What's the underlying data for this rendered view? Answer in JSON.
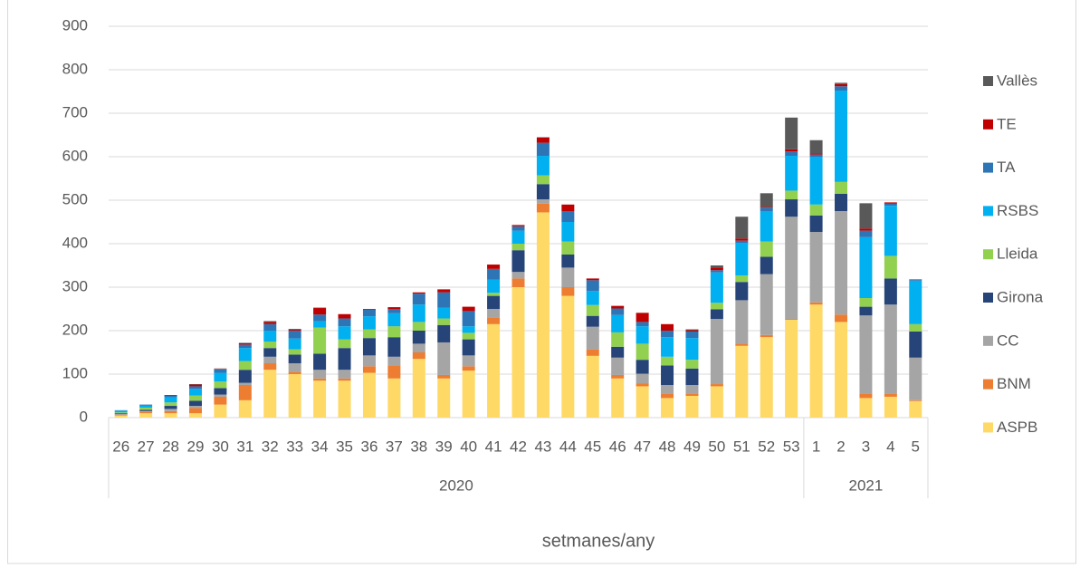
{
  "chart_data": {
    "type": "stacked_bar",
    "x_label": "setmanes/any",
    "groups": [
      {
        "name": "2020",
        "categories": [
          "26",
          "27",
          "28",
          "29",
          "30",
          "31",
          "32",
          "33",
          "34",
          "35",
          "36",
          "37",
          "38",
          "39",
          "40",
          "41",
          "42",
          "43",
          "44",
          "45",
          "46",
          "47",
          "48",
          "49",
          "50",
          "51",
          "52",
          "53"
        ]
      },
      {
        "name": "2021",
        "categories": [
          "1",
          "2",
          "3",
          "4",
          "5"
        ]
      }
    ],
    "series": [
      {
        "name": "ASPB",
        "color": "#ffd966",
        "values": [
          5,
          10,
          10,
          10,
          30,
          40,
          110,
          100,
          85,
          85,
          103,
          90,
          135,
          90,
          108,
          215,
          300,
          472,
          280,
          142,
          90,
          72,
          45,
          50,
          72,
          165,
          185,
          225,
          260,
          220,
          45,
          48,
          38
        ]
      },
      {
        "name": "BNM",
        "color": "#ed7d31",
        "values": [
          2,
          3,
          5,
          12,
          18,
          35,
          15,
          5,
          5,
          5,
          15,
          30,
          15,
          8,
          10,
          15,
          20,
          20,
          20,
          15,
          8,
          7,
          10,
          5,
          5,
          5,
          5,
          2,
          5,
          17,
          10,
          7,
          2
        ]
      },
      {
        "name": "CC",
        "color": "#a5a5a5",
        "values": [
          1,
          2,
          5,
          5,
          5,
          5,
          15,
          20,
          20,
          20,
          25,
          20,
          20,
          75,
          25,
          20,
          15,
          10,
          45,
          52,
          40,
          22,
          20,
          20,
          150,
          100,
          140,
          235,
          162,
          238,
          180,
          205,
          98
        ]
      },
      {
        "name": "Girona",
        "color": "#264478",
        "values": [
          2,
          3,
          7,
          12,
          15,
          30,
          20,
          20,
          37,
          50,
          40,
          45,
          30,
          40,
          37,
          30,
          50,
          35,
          30,
          25,
          25,
          32,
          45,
          38,
          22,
          42,
          40,
          40,
          38,
          40,
          20,
          60,
          60
        ]
      },
      {
        "name": "Lleida",
        "color": "#92d050",
        "values": [
          2,
          5,
          8,
          12,
          15,
          20,
          15,
          12,
          60,
          20,
          20,
          25,
          20,
          15,
          15,
          7,
          15,
          20,
          30,
          25,
          33,
          37,
          20,
          20,
          15,
          15,
          35,
          20,
          25,
          27,
          20,
          52,
          17
        ]
      },
      {
        "name": "RSBS",
        "color": "#00b0f0",
        "values": [
          4,
          5,
          12,
          15,
          20,
          30,
          25,
          25,
          15,
          30,
          30,
          30,
          40,
          25,
          15,
          30,
          30,
          45,
          45,
          32,
          40,
          40,
          45,
          50,
          70,
          75,
          70,
          80,
          110,
          210,
          140,
          115,
          100
        ]
      },
      {
        "name": "TA",
        "color": "#2e75b6",
        "values": [
          1,
          2,
          3,
          6,
          8,
          8,
          15,
          18,
          15,
          18,
          15,
          10,
          25,
          35,
          35,
          25,
          10,
          30,
          25,
          25,
          15,
          10,
          15,
          15,
          5,
          5,
          8,
          10,
          5,
          10,
          15,
          5,
          2
        ]
      },
      {
        "name": "TE",
        "color": "#c00000",
        "values": [
          0,
          0,
          1,
          4,
          1,
          3,
          5,
          2,
          15,
          10,
          1,
          4,
          3,
          7,
          10,
          10,
          3,
          12,
          15,
          4,
          6,
          21,
          15,
          3,
          6,
          5,
          2,
          5,
          3,
          5,
          5,
          3,
          1
        ]
      },
      {
        "name": "Vallès",
        "color": "#595959",
        "values": [
          0,
          0,
          1,
          1,
          1,
          1,
          2,
          2,
          1,
          0,
          1,
          0,
          0,
          0,
          0,
          0,
          0,
          1,
          0,
          0,
          0,
          0,
          0,
          2,
          5,
          50,
          31,
          73,
          30,
          3,
          58,
          0,
          0
        ]
      }
    ],
    "ylim": [
      0,
      900
    ],
    "yticks": [
      0,
      100,
      200,
      300,
      400,
      500,
      600,
      700,
      800,
      900
    ],
    "grid": true,
    "legend": "right"
  }
}
